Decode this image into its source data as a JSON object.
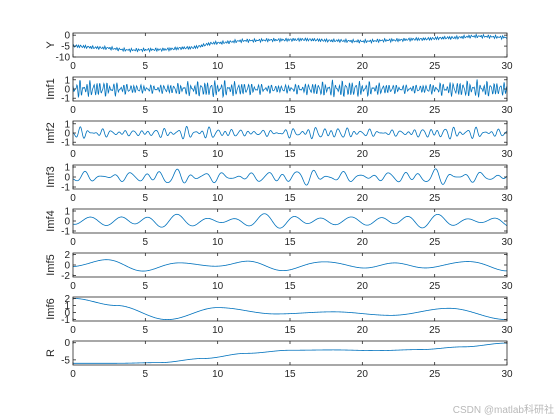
{
  "chart_data": [
    {
      "type": "line",
      "ylabel": "Y",
      "xlim": [
        0,
        30
      ],
      "ylim": [
        -10,
        1
      ],
      "yticks": [
        {
          "v": 0,
          "label": "0"
        },
        {
          "v": -5,
          "label": "-5"
        },
        {
          "v": -10,
          "label": "-10"
        }
      ],
      "xticks": [
        "0",
        "5",
        "10",
        "15",
        "20",
        "25",
        "30"
      ],
      "x_knots": [
        0,
        2,
        4,
        6,
        8,
        10,
        12,
        14,
        16,
        18,
        20,
        22,
        24,
        26,
        28,
        30
      ],
      "y_knots": [
        -5,
        -5.8,
        -6.8,
        -6.6,
        -5.8,
        -3.5,
        -2.5,
        -2.2,
        -2,
        -2.5,
        -2.8,
        -2.3,
        -1.8,
        -1.2,
        -0.5,
        -1
      ],
      "noise_amplitude": 0.9,
      "noise_freq": 6
    },
    {
      "type": "line",
      "ylabel": "Imf1",
      "xlim": [
        0,
        30
      ],
      "ylim": [
        -1.3,
        1.3
      ],
      "yticks": [
        {
          "v": 1,
          "label": "1"
        },
        {
          "v": 0,
          "label": "0"
        },
        {
          "v": -1,
          "label": "-1"
        }
      ],
      "xticks": [
        "0",
        "5",
        "10",
        "15",
        "20",
        "25",
        "30"
      ],
      "components": [
        {
          "amp": 0.5,
          "freq": 4.3
        },
        {
          "amp": 0.35,
          "freq": 5.9
        },
        {
          "amp": 0.2,
          "freq": 3.1
        }
      ]
    },
    {
      "type": "line",
      "ylabel": "Imf2",
      "xlim": [
        0,
        30
      ],
      "ylim": [
        -1.3,
        1.3
      ],
      "yticks": [
        {
          "v": 1,
          "label": "1"
        },
        {
          "v": 0,
          "label": "0"
        },
        {
          "v": -1,
          "label": "-1"
        }
      ],
      "xticks": [
        "0",
        "5",
        "10",
        "15",
        "20",
        "25",
        "30"
      ],
      "components": [
        {
          "amp": 0.35,
          "freq": 1.9
        },
        {
          "amp": 0.25,
          "freq": 1.35
        },
        {
          "amp": 0.15,
          "freq": 2.6
        }
      ]
    },
    {
      "type": "line",
      "ylabel": "Imf3",
      "xlim": [
        0,
        30
      ],
      "ylim": [
        -1.2,
        1.2
      ],
      "yticks": [
        {
          "v": 1,
          "label": "1"
        },
        {
          "v": 0,
          "label": "0"
        },
        {
          "v": -1,
          "label": "-1"
        }
      ],
      "xticks": [
        "0",
        "5",
        "10",
        "15",
        "20",
        "25",
        "30"
      ],
      "components": [
        {
          "amp": 0.45,
          "freq": 0.95
        },
        {
          "amp": 0.3,
          "freq": 0.62
        },
        {
          "amp": 0.15,
          "freq": 1.4
        }
      ]
    },
    {
      "type": "line",
      "ylabel": "Imf4",
      "xlim": [
        0,
        30
      ],
      "ylim": [
        -1.2,
        1.2
      ],
      "yticks": [
        {
          "v": 1,
          "label": "1"
        },
        {
          "v": 0,
          "label": "0"
        },
        {
          "v": -1,
          "label": "-1"
        }
      ],
      "xticks": [
        "0",
        "5",
        "10",
        "15",
        "20",
        "25",
        "30"
      ],
      "components": [
        {
          "amp": 0.55,
          "freq": 0.5
        },
        {
          "amp": 0.25,
          "freq": 0.33
        }
      ]
    },
    {
      "type": "line",
      "ylabel": "Imf5",
      "xlim": [
        0,
        30
      ],
      "ylim": [
        -2.3,
        2.3
      ],
      "yticks": [
        {
          "v": 2,
          "label": "2"
        },
        {
          "v": 0,
          "label": "0"
        },
        {
          "v": -2,
          "label": "-2"
        }
      ],
      "xticks": [
        "0",
        "5",
        "10",
        "15",
        "20",
        "25",
        "30"
      ],
      "components": [
        {
          "amp": 0.85,
          "freq": 0.2
        },
        {
          "amp": 0.45,
          "freq": 0.12
        }
      ]
    },
    {
      "type": "line",
      "ylabel": "Imf6",
      "xlim": [
        0,
        30
      ],
      "ylim": [
        -1.2,
        2.2
      ],
      "yticks": [
        {
          "v": 2,
          "label": "2"
        },
        {
          "v": 1,
          "label": "1"
        },
        {
          "v": 0,
          "label": "0"
        },
        {
          "v": -1,
          "label": "-1"
        }
      ],
      "xticks": [
        "0",
        "5",
        "10",
        "15",
        "20",
        "25",
        "30"
      ],
      "x_knots": [
        0,
        3,
        6.5,
        10,
        14,
        18,
        22,
        26,
        30
      ],
      "y_knots": [
        2,
        1,
        -1,
        0.7,
        -0.2,
        0.1,
        -0.4,
        0.6,
        -1
      ]
    },
    {
      "type": "line",
      "ylabel": "R",
      "xlim": [
        0,
        30
      ],
      "ylim": [
        -6.5,
        0.5
      ],
      "yticks": [
        {
          "v": 0,
          "label": "0"
        },
        {
          "v": -5,
          "label": "-5"
        }
      ],
      "xticks": [
        "0",
        "5",
        "10",
        "15",
        "20",
        "25",
        "30"
      ],
      "x_knots": [
        0,
        3,
        6,
        9,
        12,
        15,
        18,
        21,
        24,
        27,
        30
      ],
      "y_knots": [
        -6,
        -6,
        -5.8,
        -4.6,
        -3.1,
        -2.2,
        -2.1,
        -2.3,
        -2.0,
        -1.2,
        -0.1
      ]
    }
  ],
  "style": {
    "line_color": "#0072BD",
    "axis_color": "#262626"
  },
  "watermark": "CSDN @matlab科研社"
}
